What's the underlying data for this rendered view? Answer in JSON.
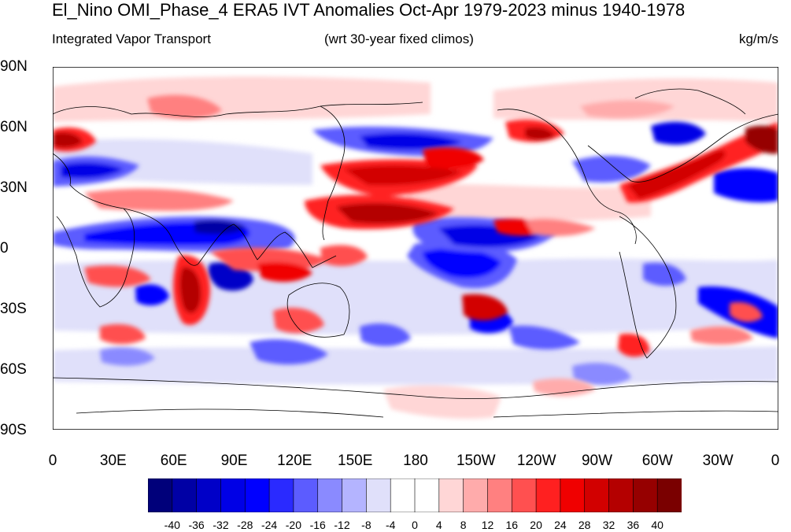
{
  "title": "El_Nino OMI_Phase_4 ERA5 IVT Anomalies Oct-Apr 1979-2023 minus 1940-1978",
  "subtitle_left": "Integrated Vapor Transport",
  "subtitle_center": "(wrt 30-year fixed climos)",
  "subtitle_right": "kg/m/s",
  "y_labels": [
    "90N",
    "60N",
    "30N",
    "0",
    "30S",
    "60S",
    "90S"
  ],
  "x_labels": [
    "0",
    "30E",
    "60E",
    "90E",
    "120E",
    "150E",
    "180",
    "150W",
    "120W",
    "90W",
    "60W",
    "30W",
    "0"
  ],
  "colorbar": {
    "labels": [
      "-40",
      "-36",
      "-32",
      "-28",
      "-24",
      "-20",
      "-16",
      "-12",
      "-8",
      "-4",
      "0",
      "4",
      "8",
      "12",
      "16",
      "20",
      "24",
      "28",
      "32",
      "36",
      "40"
    ],
    "colors": [
      "#00007a",
      "#0000a5",
      "#0000c8",
      "#0000e6",
      "#0000ff",
      "#2a2aff",
      "#5c5cff",
      "#8a8aff",
      "#b4b4ff",
      "#e0e0fa",
      "#ffffff",
      "#ffffff",
      "#ffd6d6",
      "#ffabab",
      "#ff8080",
      "#ff5050",
      "#ff2020",
      "#f00000",
      "#d20000",
      "#b40000",
      "#960000",
      "#7a0000"
    ]
  }
}
